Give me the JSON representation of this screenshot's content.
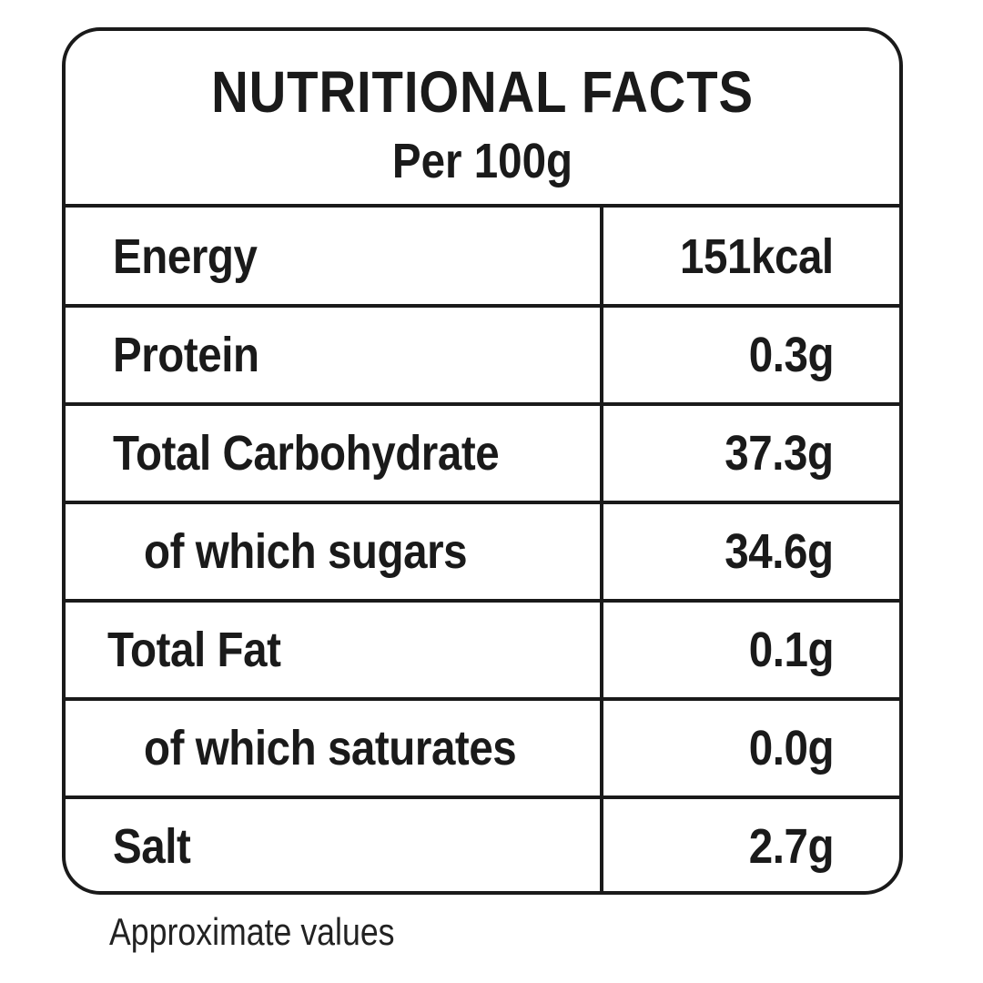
{
  "title": "NUTRITIONAL FACTS",
  "subtitle": "Per 100g",
  "rows": [
    {
      "label": "Energy",
      "value": "151kcal",
      "indent": false
    },
    {
      "label": "Protein",
      "value": "0.3g",
      "indent": false
    },
    {
      "label": "Total Carbohydrate",
      "value": "37.3g",
      "indent": false
    },
    {
      "label": "of which sugars",
      "value": "34.6g",
      "indent": true
    },
    {
      "label": "Total Fat",
      "value": "0.1g",
      "indent": false
    },
    {
      "label": "of which saturates",
      "value": "0.0g",
      "indent": true
    },
    {
      "label": "Salt",
      "value": "2.7g",
      "indent": false
    }
  ],
  "footer": "Approximate values"
}
